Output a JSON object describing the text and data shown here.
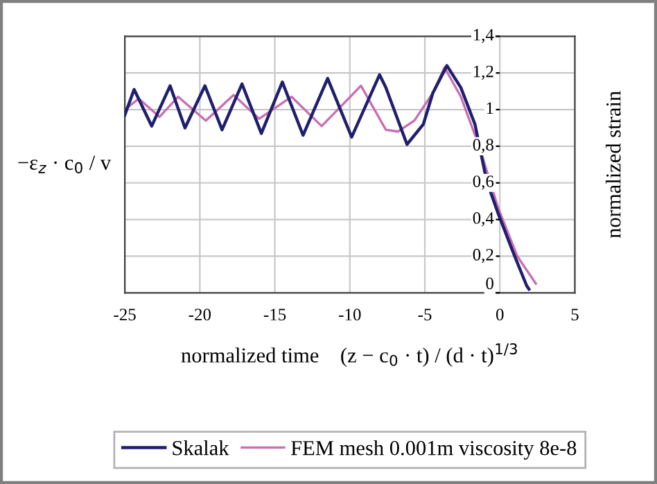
{
  "chart_data": {
    "type": "line",
    "xlabel": "normalized time    (z − c$_{0}$ · t) / (d · t)$^{1/3}$",
    "ylabel": "−ε$_{z}$ · c$_{0}$ / v",
    "y2label": "normalized strain",
    "xlim": [
      -25,
      5
    ],
    "xticks": [
      -25,
      -20,
      -15,
      -10,
      -5,
      0,
      5
    ],
    "ylim": [
      0,
      1.4
    ],
    "yticks": [
      0,
      {
        "value": 0.2,
        "label": "0,2"
      },
      {
        "value": 0.4,
        "label": "0,4"
      },
      {
        "value": 0.6,
        "label": "0,6"
      },
      {
        "value": 0.8,
        "label": "0,8"
      },
      1,
      {
        "value": 1.2,
        "label": "1,2"
      },
      {
        "value": 1.4,
        "label": "1,4"
      }
    ],
    "grid": true,
    "legend": "bottom",
    "marker": "none",
    "line_style": "solid",
    "series": [
      {
        "name": "Skalak",
        "color": "#1f1f6e",
        "x": [
          -25,
          -24.38,
          -23.21,
          -21.98,
          -20.99,
          -19.66,
          -18.52,
          -17.19,
          -15.9,
          -14.5,
          -13.12,
          -11.48,
          -9.88,
          -8.02,
          -7.6,
          -6.19,
          -5.1,
          -4.47,
          -3.53,
          -2.6,
          -1.66,
          -0.88,
          -0.1,
          0.84,
          1.78,
          1.94
        ],
        "values": [
          0.97,
          1.11,
          0.91,
          1.13,
          0.9,
          1.13,
          0.89,
          1.14,
          0.87,
          1.15,
          0.86,
          1.17,
          0.85,
          1.19,
          1.12,
          0.81,
          0.92,
          1.09,
          1.24,
          1.12,
          0.92,
          0.61,
          0.43,
          0.23,
          0.04,
          0.02
        ]
      },
      {
        "name": "FEM mesh 0.001m viscosity 8e-8",
        "color": "#c86eb4",
        "x": [
          -25,
          -24.07,
          -22.69,
          -21.45,
          -19.6,
          -17.75,
          -16.05,
          -13.89,
          -11.88,
          -9.26,
          -7.6,
          -6.8,
          -5.7,
          -4.47,
          -3.69,
          -2.6,
          -1.34,
          -0.1,
          1.16,
          2.4
        ],
        "values": [
          1.0,
          1.06,
          0.96,
          1.07,
          0.94,
          1.08,
          0.95,
          1.07,
          0.91,
          1.13,
          0.89,
          0.88,
          0.94,
          1.09,
          1.23,
          1.07,
          0.79,
          0.46,
          0.2,
          0.05
        ]
      }
    ]
  }
}
